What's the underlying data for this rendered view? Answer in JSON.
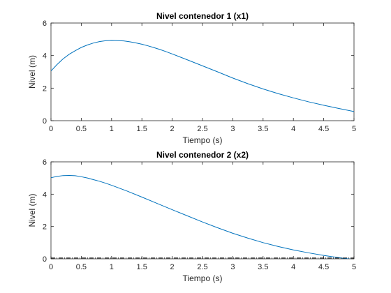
{
  "chart_data": [
    {
      "type": "line",
      "title": "Nivel contenedor 1 (x1)",
      "xlabel": "Tiempo (s)",
      "ylabel": "Nivel (m)",
      "xlim": [
        0,
        5
      ],
      "ylim": [
        0,
        6
      ],
      "xticks": [
        "0",
        "0.5",
        "1",
        "1.5",
        "2",
        "2.5",
        "3",
        "3.5",
        "4",
        "4.5",
        "5"
      ],
      "yticks": [
        "0",
        "2",
        "4",
        "6"
      ],
      "grid": false,
      "series": [
        {
          "color": "#0072BD",
          "style": "solid",
          "x": [
            0,
            0.1,
            0.2,
            0.3,
            0.4,
            0.5,
            0.6,
            0.7,
            0.8,
            0.9,
            1.0,
            1.1,
            1.2,
            1.3,
            1.4,
            1.5,
            1.6,
            1.7,
            1.8,
            1.9,
            2.0,
            2.25,
            2.5,
            2.75,
            3.0,
            3.25,
            3.5,
            3.75,
            4.0,
            4.25,
            4.5,
            4.75,
            5.0
          ],
          "y": [
            3.05,
            3.45,
            3.8,
            4.08,
            4.3,
            4.5,
            4.65,
            4.77,
            4.86,
            4.91,
            4.93,
            4.92,
            4.9,
            4.85,
            4.78,
            4.7,
            4.6,
            4.49,
            4.37,
            4.24,
            4.1,
            3.74,
            3.37,
            3.0,
            2.62,
            2.27,
            1.95,
            1.66,
            1.4,
            1.16,
            0.95,
            0.75,
            0.56
          ]
        }
      ]
    },
    {
      "type": "line",
      "title": "Nivel contenedor 2 (x2)",
      "xlabel": "Tiempo (s)",
      "ylabel": "Nivel (m)",
      "xlim": [
        0,
        5
      ],
      "ylim": [
        0,
        6
      ],
      "xticks": [
        "0",
        "0.5",
        "1",
        "1.5",
        "2",
        "2.5",
        "3",
        "3.5",
        "4",
        "4.5",
        "5"
      ],
      "yticks": [
        "0",
        "2",
        "4",
        "6"
      ],
      "grid": false,
      "series": [
        {
          "color": "#0072BD",
          "style": "solid",
          "x": [
            0,
            0.1,
            0.2,
            0.3,
            0.4,
            0.5,
            0.6,
            0.7,
            0.8,
            0.9,
            1.0,
            1.25,
            1.5,
            1.75,
            2.0,
            2.25,
            2.5,
            2.75,
            3.0,
            3.25,
            3.5,
            3.75,
            4.0,
            4.25,
            4.5,
            4.75,
            4.9,
            5.0
          ],
          "y": [
            5.02,
            5.1,
            5.15,
            5.16,
            5.14,
            5.08,
            5.0,
            4.9,
            4.8,
            4.68,
            4.55,
            4.2,
            3.82,
            3.43,
            3.04,
            2.66,
            2.28,
            1.92,
            1.58,
            1.28,
            1.0,
            0.76,
            0.55,
            0.37,
            0.21,
            0.07,
            0.0,
            -0.04
          ]
        },
        {
          "color": "#000000",
          "style": "dashdot",
          "x": [
            0,
            5
          ],
          "y": [
            0.05,
            0.05
          ]
        }
      ]
    }
  ]
}
